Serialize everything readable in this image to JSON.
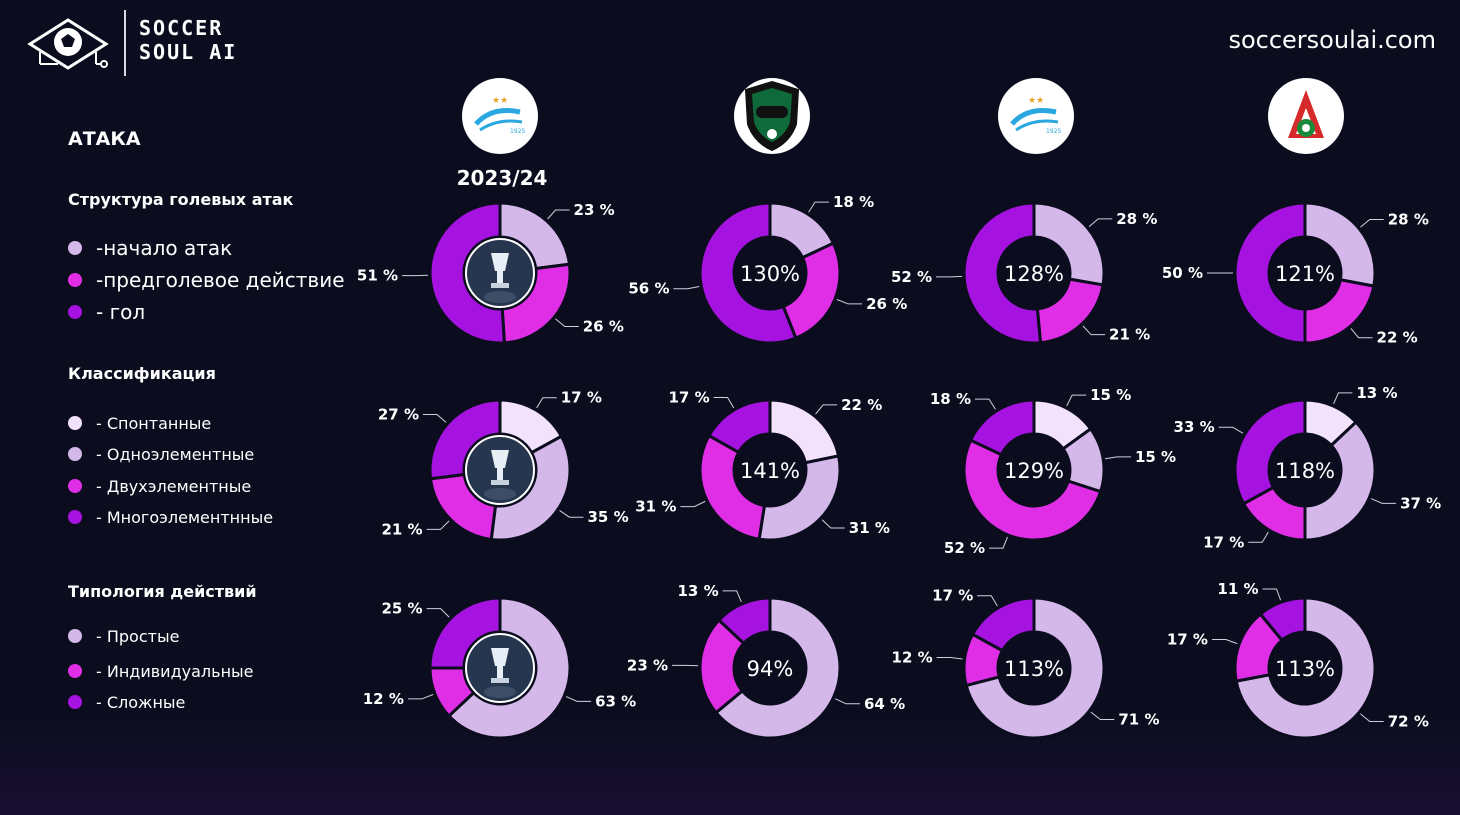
{
  "header": {
    "brand_line1": "SOCCER",
    "brand_line2": "SOUL AI",
    "site_url": "soccersoulai.com"
  },
  "section_title": "АТАКА",
  "season": "2023/24",
  "groups": [
    {
      "title": "Структура голевых атак",
      "legend": [
        {
          "label": " -начало атак",
          "color": "#d5b8ea"
        },
        {
          "label": "-предголевое действие",
          "color": "#e02ee6"
        },
        {
          "label": "- гол",
          "color": "#a613e0"
        }
      ]
    },
    {
      "title": "Классификация",
      "legend": [
        {
          "label": "- Спонтанные",
          "color": "#f3e2fb"
        },
        {
          "label": "- Одноэлементные",
          "color": "#d5b8ea"
        },
        {
          "label": "- Двухэлементные",
          "color": "#e02ee6"
        },
        {
          "label": "- Многоэлементнные",
          "color": "#a613e0"
        }
      ]
    },
    {
      "title": "Типология действий",
      "legend": [
        {
          "label": "- Простые",
          "color": "#d5b8ea"
        },
        {
          "label": "- Индивидуальные",
          "color": "#e02ee6"
        },
        {
          "label": "- Сложные",
          "color": "#a613e0"
        }
      ]
    }
  ],
  "club_icons": [
    "zenit-logo-icon",
    "krasnodar-logo-icon",
    "zenit-logo-icon",
    "lokomotiv-logo-icon"
  ],
  "colors": {
    "background": "#0b0d1f",
    "spontaneous": "#f3e2fb",
    "light": "#d5b8ea",
    "pink": "#e02ee6",
    "purple": "#a613e0"
  },
  "chart_data": [
    {
      "type": "pie",
      "group": "Структура голевых атак",
      "column": 1,
      "values": [
        23,
        26,
        51
      ],
      "labels": [
        "23 %",
        "26 %",
        "51 %"
      ],
      "colors": [
        "#d5b8ea",
        "#e02ee6",
        "#a613e0"
      ],
      "center": "trophy-icon"
    },
    {
      "type": "pie",
      "group": "Структура голевых атак",
      "column": 2,
      "values": [
        18,
        26,
        56
      ],
      "labels": [
        "18 %",
        "26 %",
        "56 %"
      ],
      "colors": [
        "#d5b8ea",
        "#e02ee6",
        "#a613e0"
      ],
      "center": "130%"
    },
    {
      "type": "pie",
      "group": "Структура голевых атак",
      "column": 3,
      "values": [
        28,
        21,
        52
      ],
      "labels": [
        "28 %",
        "21 %",
        "52 %"
      ],
      "colors": [
        "#d5b8ea",
        "#e02ee6",
        "#a613e0"
      ],
      "center": "128%"
    },
    {
      "type": "pie",
      "group": "Структура голевых атак",
      "column": 4,
      "values": [
        28,
        22,
        50
      ],
      "labels": [
        "28 %",
        "22 %",
        "50 %"
      ],
      "colors": [
        "#d5b8ea",
        "#e02ee6",
        "#a613e0"
      ],
      "center": "121%"
    },
    {
      "type": "pie",
      "group": "Классификация",
      "column": 1,
      "values": [
        17,
        35,
        21,
        27
      ],
      "labels": [
        "17 %",
        "35 %",
        "21 %",
        "27 %"
      ],
      "colors": [
        "#f3e2fb",
        "#d5b8ea",
        "#e02ee6",
        "#a613e0"
      ],
      "center": "trophy-icon"
    },
    {
      "type": "pie",
      "group": "Классификация",
      "column": 2,
      "values": [
        22,
        31,
        31,
        17
      ],
      "labels": [
        "22 %",
        "31 %",
        "31 %",
        "17 %"
      ],
      "colors": [
        "#f3e2fb",
        "#d5b8ea",
        "#e02ee6",
        "#a613e0"
      ],
      "center": "141%"
    },
    {
      "type": "pie",
      "group": "Классификация",
      "column": 3,
      "values": [
        15,
        15,
        52,
        18
      ],
      "labels": [
        "15 %",
        "15 %",
        "52 %",
        "18 %"
      ],
      "colors": [
        "#f3e2fb",
        "#d5b8ea",
        "#e02ee6",
        "#a613e0"
      ],
      "center": "129%"
    },
    {
      "type": "pie",
      "group": "Классификация",
      "column": 4,
      "values": [
        13,
        37,
        17,
        33
      ],
      "labels": [
        "13 %",
        "37 %",
        "17 %",
        "33 %"
      ],
      "colors": [
        "#f3e2fb",
        "#d5b8ea",
        "#e02ee6",
        "#a613e0"
      ],
      "center": "118%"
    },
    {
      "type": "pie",
      "group": "Типология действий",
      "column": 1,
      "values": [
        63,
        12,
        25
      ],
      "labels": [
        "63 %",
        "12 %",
        "25 %"
      ],
      "colors": [
        "#d5b8ea",
        "#e02ee6",
        "#a613e0"
      ],
      "center": "trophy-icon"
    },
    {
      "type": "pie",
      "group": "Типология действий",
      "column": 2,
      "values": [
        64,
        23,
        13
      ],
      "labels": [
        "64 %",
        "23 %",
        "13 %"
      ],
      "colors": [
        "#d5b8ea",
        "#e02ee6",
        "#a613e0"
      ],
      "center": "94%"
    },
    {
      "type": "pie",
      "group": "Типология действий",
      "column": 3,
      "values": [
        71,
        12,
        17
      ],
      "labels": [
        "71 %",
        "12 %",
        "17 %"
      ],
      "colors": [
        "#d5b8ea",
        "#e02ee6",
        "#a613e0"
      ],
      "center": "113%"
    },
    {
      "type": "pie",
      "group": "Типология действий",
      "column": 4,
      "values": [
        72,
        17,
        11
      ],
      "labels": [
        "72 %",
        "17 %",
        "11 %"
      ],
      "colors": [
        "#d5b8ea",
        "#e02ee6",
        "#a613e0"
      ],
      "center": "113%"
    }
  ]
}
